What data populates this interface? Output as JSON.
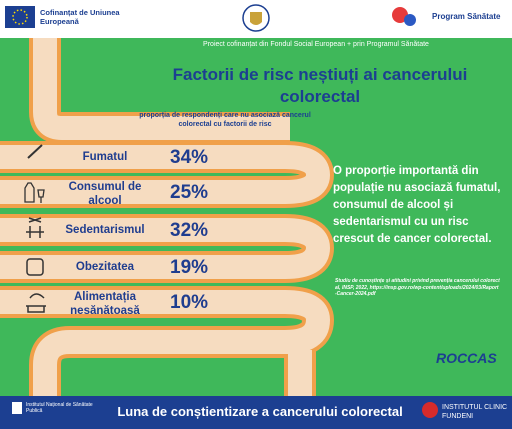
{
  "header": {
    "eu_text": "Cofinanțat de Uniunea Europeană",
    "program": "Program Sănătate",
    "project_line": "Proiect cofinanțat din Fondul Social European + prin Programul Sănătate"
  },
  "title": "Factorii de risc neștiuți ai cancerului colorectal",
  "subtitle": "proporția de respondenți care nu asociază cancerul colorectal cu factorii de risc",
  "rows": [
    {
      "label": "Fumatul",
      "value": "34%"
    },
    {
      "label": "Consumul de alcool",
      "value": "25%"
    },
    {
      "label": "Sedentarismul",
      "value": "32%"
    },
    {
      "label": "Obezitatea",
      "value": "19%"
    },
    {
      "label": "Alimentația nesănătoasă",
      "value": "10%"
    }
  ],
  "statement": "O proporție importantă din populație nu asociază fumatul, consumul de alcool și sedentarismul cu un risc crescut de cancer colorectal.",
  "source": "Studiu de cunoștințe și atitudini privind prevenția cancerului colorectal, INSP, 2022, https://insp.gov.ro/wp-content/uploads/2024/03/Raport-Cancer-2024.pdf",
  "logo": "ROCCAS",
  "footer": {
    "left": "Institutul Național de Sănătate Publică",
    "title": "Luna de conștientizare a cancerului colorectal",
    "right": "INSTITUTUL CLINIC FUNDENI"
  }
}
